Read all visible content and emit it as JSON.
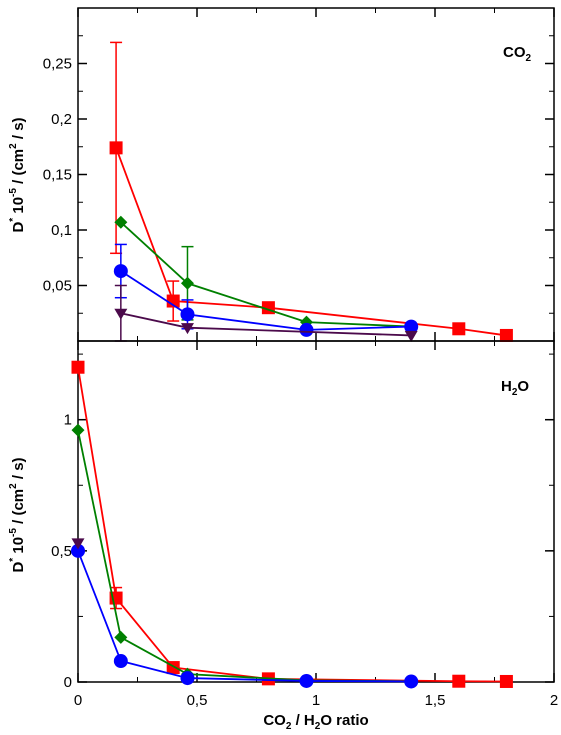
{
  "chart_data": [
    {
      "type": "line",
      "panel": "top",
      "label_main": "CO",
      "label_sub": "2",
      "ylabel": {
        "parts": [
          "D",
          "*",
          " 10",
          "-5",
          " / (cm",
          "2",
          " / s)"
        ]
      },
      "ylim": [
        0,
        0.3
      ],
      "xlim": [
        0,
        2
      ],
      "yticks": [
        0.05,
        0.1,
        0.15,
        0.2,
        0.25
      ],
      "ytick_labels": [
        "0,05",
        "0,1",
        "0,15",
        "0,2",
        "0,25"
      ],
      "series": [
        {
          "color": "#ff0000",
          "marker": "square",
          "points": [
            {
              "x": 0.16,
              "y": 0.174,
              "err": 0.095
            },
            {
              "x": 0.4,
              "y": 0.036,
              "err": 0.018
            },
            {
              "x": 0.8,
              "y": 0.03
            },
            {
              "x": 1.6,
              "y": 0.011
            },
            {
              "x": 1.8,
              "y": 0.005
            }
          ]
        },
        {
          "color": "#008000",
          "marker": "diamond",
          "points": [
            {
              "x": 0.18,
              "y": 0.107
            },
            {
              "x": 0.46,
              "y": 0.052,
              "err": 0.033
            },
            {
              "x": 0.96,
              "y": 0.017
            },
            {
              "x": 1.4,
              "y": 0.013
            }
          ]
        },
        {
          "color": "#0000ff",
          "marker": "circle",
          "points": [
            {
              "x": 0.18,
              "y": 0.063,
              "err": 0.024
            },
            {
              "x": 0.46,
              "y": 0.024,
              "err": 0.013
            },
            {
              "x": 0.96,
              "y": 0.01
            },
            {
              "x": 1.4,
              "y": 0.013
            }
          ]
        },
        {
          "color": "#4b0a4b",
          "marker": "triangle-down",
          "points": [
            {
              "x": 0.18,
              "y": 0.025,
              "err": 0.025
            },
            {
              "x": 0.46,
              "y": 0.012
            },
            {
              "x": 1.4,
              "y": 0.005
            }
          ]
        }
      ]
    },
    {
      "type": "line",
      "panel": "bottom",
      "label_main": "H",
      "label_sub": "2",
      "label_tail": "O",
      "ylabel": {
        "parts": [
          "D",
          "*",
          " 10",
          "-5",
          " / (cm",
          "2",
          " / s)"
        ]
      },
      "ylim": [
        0,
        1.3
      ],
      "xlim": [
        0,
        2
      ],
      "yticks": [
        0,
        0.5,
        1
      ],
      "ytick_labels": [
        "0",
        "0,5",
        "1"
      ],
      "xticks": [
        0,
        0.5,
        1,
        1.5,
        2
      ],
      "xtick_labels": [
        "0",
        "0,5",
        "1",
        "1,5",
        "2"
      ],
      "xlabel": {
        "parts": [
          "CO",
          "2",
          " / H",
          "2",
          "O ratio"
        ]
      },
      "series": [
        {
          "color": "#ff0000",
          "marker": "square",
          "points": [
            {
              "x": 0.0,
              "y": 1.2,
              "err": 0.02
            },
            {
              "x": 0.16,
              "y": 0.32,
              "err": 0.04
            },
            {
              "x": 0.4,
              "y": 0.055
            },
            {
              "x": 0.8,
              "y": 0.012
            },
            {
              "x": 1.6,
              "y": 0.003
            },
            {
              "x": 1.8,
              "y": 0.002
            }
          ]
        },
        {
          "color": "#008000",
          "marker": "diamond",
          "points": [
            {
              "x": 0.0,
              "y": 0.96
            },
            {
              "x": 0.18,
              "y": 0.17
            },
            {
              "x": 0.46,
              "y": 0.03
            },
            {
              "x": 0.96,
              "y": 0.006
            },
            {
              "x": 1.4,
              "y": 0.003
            }
          ]
        },
        {
          "color": "#0000ff",
          "marker": "circle",
          "points": [
            {
              "x": 0.0,
              "y": 0.5
            },
            {
              "x": 0.18,
              "y": 0.08
            },
            {
              "x": 0.46,
              "y": 0.015
            },
            {
              "x": 0.96,
              "y": 0.004
            },
            {
              "x": 1.4,
              "y": 0.002
            }
          ]
        },
        {
          "color": "#4b0a4b",
          "marker": "triangle-down",
          "points": [
            {
              "x": 0.0,
              "y": 0.53
            }
          ]
        }
      ]
    }
  ]
}
